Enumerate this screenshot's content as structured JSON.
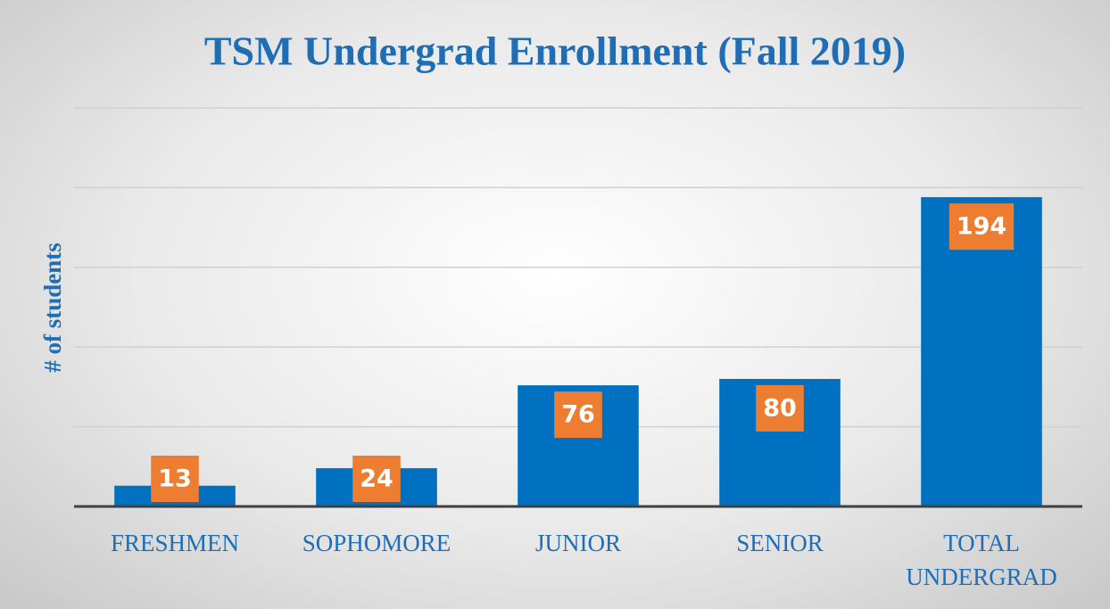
{
  "chart_data": {
    "type": "bar",
    "title": "TSM Undergrad Enrollment (Fall 2019)",
    "y_label": "# of students",
    "categories": [
      "FRESHMEN",
      "SOPHOMORE",
      "JUNIOR",
      "SENIOR",
      "TOTAL UNDERGRAD"
    ],
    "values": [
      13,
      24,
      76,
      80,
      194
    ],
    "color": "#0070c0",
    "label_color": "#ed7d31",
    "ylim": [
      0,
      250
    ],
    "yticks": [
      0,
      50,
      100,
      150,
      200,
      250
    ],
    "grid": true
  }
}
